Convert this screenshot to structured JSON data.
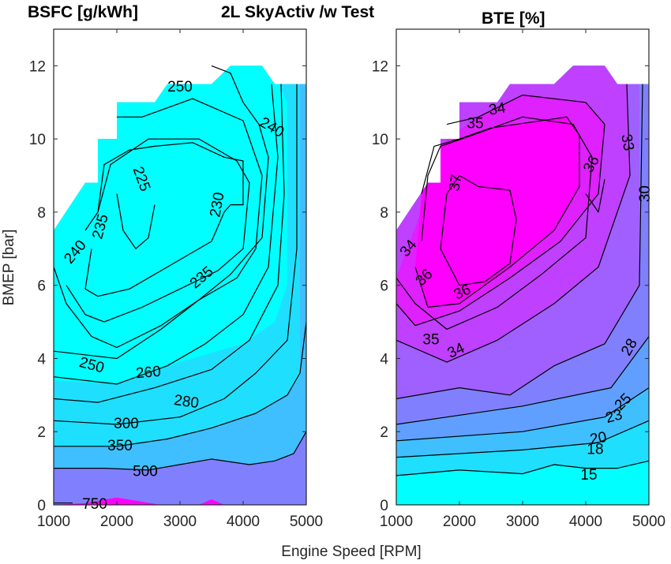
{
  "chart_data": [
    {
      "type": "contour",
      "title": "BSFC [g/kWh]",
      "suptitle": "2L SkyActiv /w Test",
      "xlabel": "Engine Speed [RPM]",
      "ylabel": "BMEP [bar]",
      "xlim": [
        1000,
        5000
      ],
      "ylim": [
        0,
        13
      ],
      "xticks": [
        "1000",
        "2000",
        "3000",
        "4000",
        "5000"
      ],
      "yticks": [
        "0",
        "2",
        "4",
        "6",
        "8",
        "10",
        "12"
      ],
      "grid": false,
      "colormap": "cool (cyan to magenta)",
      "fill_colors": {
        "lowest": "#00ffff",
        "mid": "#3fbfff",
        "high": "#8080ff",
        "highest": "#ff00ff"
      },
      "max_torque_boundary": [
        [
          1000,
          7.5
        ],
        [
          1500,
          8.8
        ],
        [
          1700,
          8.8
        ],
        [
          1700,
          10.0
        ],
        [
          2000,
          10.0
        ],
        [
          2000,
          11.0
        ],
        [
          2600,
          11.0
        ],
        [
          2800,
          11.5
        ],
        [
          3500,
          11.5
        ],
        [
          3800,
          12.0
        ],
        [
          4300,
          12.0
        ],
        [
          4500,
          11.5
        ],
        [
          5000,
          11.5
        ],
        [
          5000,
          0
        ],
        [
          1000,
          0
        ]
      ],
      "contour_levels": [
        225,
        230,
        235,
        240,
        250,
        260,
        280,
        300,
        350,
        500,
        750
      ],
      "contour_labels": [
        {
          "text": "250",
          "x": 3000,
          "y": 11.4,
          "rotate": 0
        },
        {
          "text": "240",
          "x": 4450,
          "y": 10.3,
          "rotate": 30
        },
        {
          "text": "225",
          "x": 2380,
          "y": 8.9,
          "rotate": 70
        },
        {
          "text": "230",
          "x": 3600,
          "y": 8.2,
          "rotate": -80
        },
        {
          "text": "235",
          "x": 1750,
          "y": 7.6,
          "rotate": -75
        },
        {
          "text": "240",
          "x": 1350,
          "y": 6.9,
          "rotate": -50
        },
        {
          "text": "235",
          "x": 3350,
          "y": 6.2,
          "rotate": -40
        },
        {
          "text": "250",
          "x": 1600,
          "y": 3.8,
          "rotate": 15
        },
        {
          "text": "260",
          "x": 2500,
          "y": 3.6,
          "rotate": -5
        },
        {
          "text": "280",
          "x": 3100,
          "y": 2.8,
          "rotate": 8
        },
        {
          "text": "300",
          "x": 2150,
          "y": 2.2,
          "rotate": 0
        },
        {
          "text": "350",
          "x": 2050,
          "y": 1.6,
          "rotate": 0
        },
        {
          "text": "500",
          "x": 2450,
          "y": 0.9,
          "rotate": 0
        },
        {
          "text": "750",
          "x": 1650,
          "y": 0.0,
          "rotate": 0
        }
      ]
    },
    {
      "type": "contour",
      "title": "BTE [%]",
      "xlabel": "Engine Speed [RPM]",
      "ylabel": "",
      "xlim": [
        1000,
        5000
      ],
      "ylim": [
        0,
        13
      ],
      "xticks": [
        "1000",
        "2000",
        "3000",
        "4000",
        "5000"
      ],
      "yticks": [
        "0",
        "2",
        "4",
        "6",
        "8",
        "10",
        "12"
      ],
      "grid": false,
      "colormap": "cool (cyan to magenta)",
      "contour_levels": [
        15,
        18,
        20,
        23,
        25,
        28,
        30,
        33,
        34,
        35,
        36,
        37
      ],
      "contour_labels": [
        {
          "text": "34",
          "x": 2600,
          "y": 10.8,
          "rotate": -10
        },
        {
          "text": "35",
          "x": 2250,
          "y": 10.4,
          "rotate": 0
        },
        {
          "text": "37",
          "x": 1950,
          "y": 8.8,
          "rotate": -80
        },
        {
          "text": "36",
          "x": 4100,
          "y": 9.3,
          "rotate": -60
        },
        {
          "text": "33",
          "x": 4650,
          "y": 9.9,
          "rotate": 80
        },
        {
          "text": "30",
          "x": 4950,
          "y": 8.5,
          "rotate": -90
        },
        {
          "text": "34",
          "x": 1200,
          "y": 7.0,
          "rotate": -50
        },
        {
          "text": "36",
          "x": 1450,
          "y": 6.2,
          "rotate": -45
        },
        {
          "text": "36",
          "x": 2050,
          "y": 5.8,
          "rotate": -25
        },
        {
          "text": "35",
          "x": 1550,
          "y": 4.5,
          "rotate": 0
        },
        {
          "text": "34",
          "x": 1950,
          "y": 4.2,
          "rotate": -25
        },
        {
          "text": "28",
          "x": 4700,
          "y": 4.3,
          "rotate": -60
        },
        {
          "text": "25",
          "x": 4600,
          "y": 2.8,
          "rotate": -45
        },
        {
          "text": "23",
          "x": 4450,
          "y": 2.4,
          "rotate": -15
        },
        {
          "text": "20",
          "x": 4200,
          "y": 1.8,
          "rotate": -10
        },
        {
          "text": "18",
          "x": 4150,
          "y": 1.5,
          "rotate": 0
        },
        {
          "text": "15",
          "x": 4050,
          "y": 0.8,
          "rotate": 0
        }
      ]
    }
  ]
}
